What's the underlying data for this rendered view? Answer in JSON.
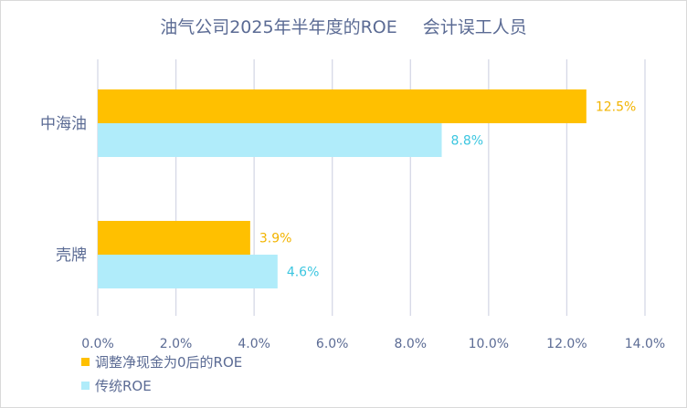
{
  "chart_data": {
    "type": "bar",
    "orientation": "horizontal",
    "title": "油气公司2025年半年度的ROE",
    "subtitle": "会计误工人员",
    "categories": [
      "中海油",
      "壳牌"
    ],
    "series": [
      {
        "name": "调整净现金为0后的ROE",
        "values": [
          12.5,
          3.9
        ],
        "labels": [
          "12.5%",
          "3.9%"
        ],
        "color": "#ffc000"
      },
      {
        "name": "传统ROE",
        "values": [
          8.8,
          4.6
        ],
        "labels": [
          "8.8%",
          "4.6%"
        ],
        "color": "#b0ecfa"
      }
    ],
    "xlim": [
      0,
      14
    ],
    "xticks": [
      0,
      2,
      4,
      6,
      8,
      10,
      12,
      14
    ],
    "xtick_labels": [
      "0.0%",
      "2.0%",
      "4.0%",
      "6.0%",
      "8.0%",
      "10.0%",
      "12.0%",
      "14.0%"
    ],
    "xlabel": "",
    "ylabel": "",
    "grid": "vertical",
    "legend_position": "bottom-left",
    "label_colors": [
      "#f2b400",
      "#3cc6e0"
    ],
    "text_color": "#5b6b94",
    "grid_color": "#d5d8e6"
  }
}
